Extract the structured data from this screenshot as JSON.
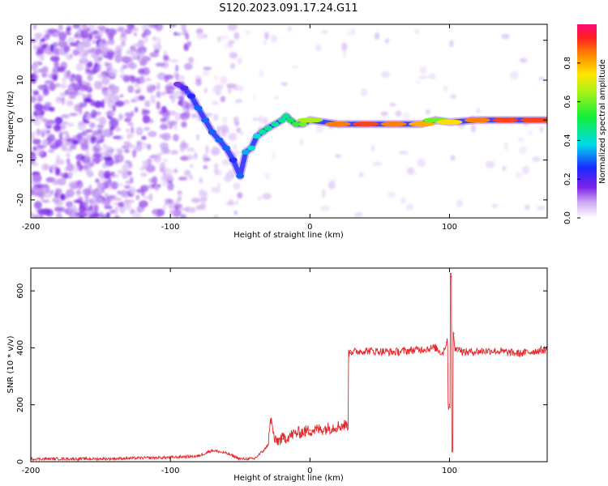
{
  "title": "S120.2023.091.17.24.G11",
  "colorbar": {
    "label": "Normalized spectral amplitude",
    "ticks": [
      "0.0",
      "0.2",
      "0.4",
      "0.6",
      "0.8"
    ]
  },
  "chart_data": [
    {
      "type": "heatmap",
      "xlabel": "Height of straight line (km)",
      "ylabel": "Frequency (Hz)",
      "xlim": [
        -200,
        170
      ],
      "ylim": [
        -24.5,
        24
      ],
      "xticks": [
        -200,
        -100,
        0,
        100
      ],
      "yticks": [
        -20,
        -10,
        0,
        10,
        20
      ],
      "zlim": [
        0,
        1
      ],
      "ridge": {
        "x": [
          -95,
          -90,
          -85,
          -80,
          -75,
          -70,
          -65,
          -60,
          -55,
          -50,
          -46,
          -42,
          -38,
          -34,
          -30,
          -25,
          -20,
          -17,
          -14,
          -10,
          -5,
          0,
          20,
          40,
          60,
          80,
          90,
          100,
          120,
          140,
          160,
          170
        ],
        "y": [
          9,
          8,
          6,
          3,
          0,
          -3,
          -5,
          -7,
          -10,
          -14,
          -8,
          -7,
          -4,
          -3,
          -2,
          -1,
          0,
          1,
          0,
          -1,
          -1,
          0,
          -1,
          -1,
          -1,
          -1,
          0,
          -0.5,
          0,
          0,
          0,
          0
        ],
        "amplitude": [
          0.15,
          0.2,
          0.25,
          0.3,
          0.3,
          0.3,
          0.3,
          0.3,
          0.25,
          0.3,
          0.35,
          0.4,
          0.4,
          0.45,
          0.45,
          0.45,
          0.45,
          0.45,
          0.5,
          0.55,
          0.6,
          0.65,
          0.85,
          0.9,
          0.85,
          0.8,
          0.6,
          0.75,
          0.85,
          0.9,
          0.9,
          0.9
        ]
      }
    },
    {
      "type": "line",
      "xlabel": "Height of straight line (km)",
      "ylabel": "SNR (10 * v/v)",
      "xlim": [
        -200,
        170
      ],
      "ylim": [
        0,
        680
      ],
      "xticks": [
        -200,
        -100,
        0,
        100
      ],
      "yticks": [
        0,
        200,
        400,
        600
      ],
      "color": "#e8262a",
      "series": [
        {
          "x": [
            -200,
            -150,
            -100,
            -80,
            -70,
            -60,
            -50,
            -40,
            -33,
            -30,
            -28,
            -25,
            -20,
            -10,
            0,
            10,
            20,
            27,
            28,
            29,
            30,
            40,
            60,
            80,
            90,
            95,
            98,
            100,
            101,
            102,
            103,
            104,
            106,
            110,
            130,
            150,
            170
          ],
          "y": [
            10,
            10,
            15,
            20,
            40,
            30,
            10,
            10,
            40,
            60,
            150,
            70,
            80,
            100,
            110,
            115,
            125,
            130,
            380,
            390,
            385,
            390,
            385,
            395,
            400,
            380,
            420,
            200,
            660,
            35,
            450,
            390,
            400,
            385,
            390,
            380,
            395
          ]
        }
      ]
    }
  ]
}
